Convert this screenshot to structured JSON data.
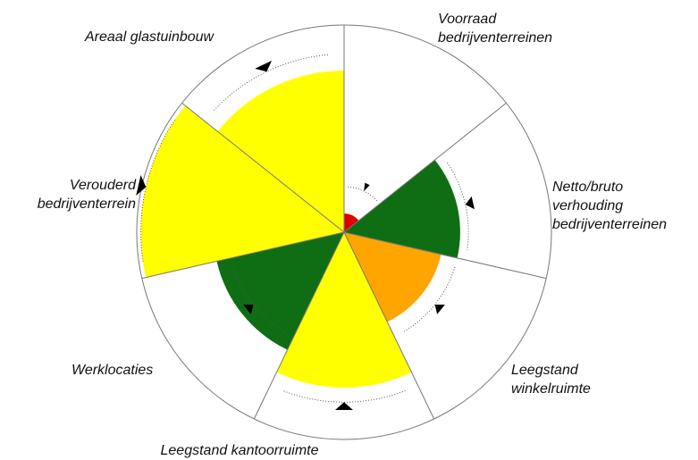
{
  "chart_data": {
    "type": "polar_area",
    "categories": [
      [
        "Voorraad",
        "bedrijventerreinen"
      ],
      [
        "Netto/bruto",
        "verhouding",
        "bedrijventerreinen"
      ],
      [
        "Leegstand",
        "winkelruimte"
      ],
      [
        "Leegstand kantoorruimte"
      ],
      [
        "Werklocaties"
      ],
      [
        "Verouderd",
        "bedrijventerrein"
      ],
      [
        "Areaal glastuinbouw"
      ]
    ],
    "values": [
      9,
      56,
      48,
      75,
      63,
      98,
      78
    ],
    "colors": [
      "#e00000",
      "#0f6e14",
      "#ffa500",
      "#ffff00",
      "#0f6e14",
      "#ffff00",
      "#ffff00"
    ],
    "markers": [
      22,
      60,
      56,
      82,
      56,
      98,
      86
    ],
    "rlim": [
      0,
      100
    ]
  }
}
